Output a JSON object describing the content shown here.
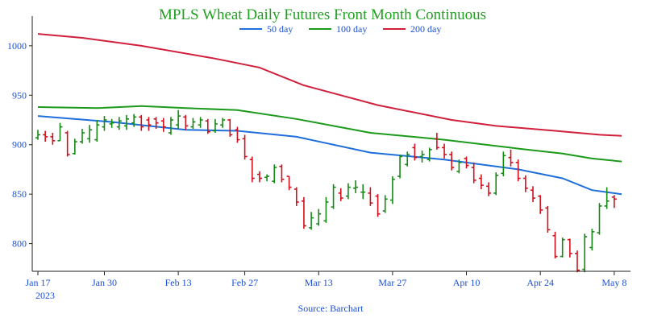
{
  "chart_data": {
    "type": "ohlc_line",
    "title": "MPLS Wheat Daily Futures Front Month Continuous",
    "source": "Source: Barchart",
    "xlabel": "",
    "ylabel": "",
    "ylim": [
      772,
      1030
    ],
    "xlim": [
      0,
      79
    ],
    "y_ticks": [
      800,
      850,
      900,
      950,
      1000
    ],
    "x_ticks": [
      {
        "i": 0,
        "label": "Jan 17"
      },
      {
        "i": 9,
        "label": "Jan 30"
      },
      {
        "i": 19,
        "label": "Feb 13"
      },
      {
        "i": 28,
        "label": "Feb 27"
      },
      {
        "i": 38,
        "label": "Mar 13"
      },
      {
        "i": 48,
        "label": "Mar 27"
      },
      {
        "i": 58,
        "label": "Apr 10"
      },
      {
        "i": 68,
        "label": "Apr 24"
      },
      {
        "i": 78,
        "label": "May 8"
      }
    ],
    "x_sublabel": "2023",
    "legend": [
      {
        "name": "50 day",
        "color": "#1f6fdb"
      },
      {
        "name": "100 day",
        "color": "#1b9a1b"
      },
      {
        "name": "200 day",
        "color": "#d0203c"
      }
    ],
    "up_color": "#168a16",
    "down_color": "#d0101c",
    "ma_series": [
      {
        "name": "50 day",
        "color": "#1f6fdb",
        "points": [
          [
            0,
            929
          ],
          [
            10,
            923
          ],
          [
            20,
            915
          ],
          [
            27,
            914
          ],
          [
            35,
            908
          ],
          [
            45,
            892
          ],
          [
            55,
            885
          ],
          [
            65,
            875
          ],
          [
            71,
            866
          ],
          [
            75,
            854
          ],
          [
            79,
            850
          ]
        ]
      },
      {
        "name": "100 day",
        "color": "#1b9a1b",
        "points": [
          [
            0,
            938
          ],
          [
            8,
            937
          ],
          [
            14,
            939
          ],
          [
            20,
            937
          ],
          [
            27,
            935
          ],
          [
            35,
            926
          ],
          [
            45,
            912
          ],
          [
            55,
            905
          ],
          [
            65,
            896
          ],
          [
            71,
            891
          ],
          [
            75,
            886
          ],
          [
            79,
            883
          ]
        ]
      },
      {
        "name": "200 day",
        "color": "#d0203c",
        "points": [
          [
            0,
            1012
          ],
          [
            6,
            1008
          ],
          [
            14,
            1000
          ],
          [
            24,
            987
          ],
          [
            30,
            978
          ],
          [
            36,
            960
          ],
          [
            46,
            940
          ],
          [
            56,
            925
          ],
          [
            62,
            919
          ],
          [
            70,
            914
          ],
          [
            76,
            910
          ],
          [
            79,
            909
          ]
        ]
      }
    ],
    "bars": [
      [
        0,
        907,
        915,
        905,
        910
      ],
      [
        1,
        910,
        914,
        903,
        908
      ],
      [
        2,
        908,
        912,
        900,
        904
      ],
      [
        3,
        904,
        922,
        904,
        918
      ],
      [
        4,
        912,
        914,
        888,
        890
      ],
      [
        5,
        891,
        906,
        890,
        903
      ],
      [
        6,
        903,
        916,
        901,
        912
      ],
      [
        7,
        906,
        920,
        902,
        915
      ],
      [
        8,
        905,
        925,
        903,
        920
      ],
      [
        9,
        918,
        929,
        914,
        925
      ],
      [
        10,
        921,
        926,
        917,
        922
      ],
      [
        11,
        918,
        928,
        915,
        924
      ],
      [
        12,
        919,
        930,
        915,
        926
      ],
      [
        13,
        922,
        931,
        918,
        928
      ],
      [
        14,
        928,
        930,
        914,
        918
      ],
      [
        15,
        925,
        928,
        914,
        920
      ],
      [
        16,
        926,
        928,
        916,
        922
      ],
      [
        17,
        924,
        927,
        913,
        918
      ],
      [
        18,
        912,
        928,
        910,
        925
      ],
      [
        19,
        920,
        935,
        916,
        929
      ],
      [
        20,
        928,
        930,
        915,
        919
      ],
      [
        21,
        918,
        927,
        916,
        923
      ],
      [
        22,
        920,
        928,
        917,
        925
      ],
      [
        23,
        924,
        926,
        911,
        913
      ],
      [
        24,
        914,
        926,
        912,
        921
      ],
      [
        25,
        920,
        927,
        917,
        925
      ],
      [
        26,
        925,
        926,
        908,
        910
      ],
      [
        27,
        915,
        918,
        902,
        905
      ],
      [
        28,
        906,
        910,
        885,
        888
      ],
      [
        29,
        885,
        888,
        862,
        866
      ],
      [
        30,
        870,
        873,
        862,
        866
      ],
      [
        31,
        867,
        870,
        863,
        868
      ],
      [
        32,
        863,
        880,
        861,
        877
      ],
      [
        33,
        878,
        880,
        862,
        865
      ],
      [
        34,
        868,
        868,
        854,
        857
      ],
      [
        35,
        855,
        857,
        838,
        842
      ],
      [
        36,
        843,
        847,
        815,
        818
      ],
      [
        37,
        816,
        832,
        814,
        826
      ],
      [
        38,
        820,
        835,
        818,
        830
      ],
      [
        39,
        823,
        847,
        821,
        842
      ],
      [
        40,
        837,
        860,
        835,
        857
      ],
      [
        41,
        851,
        856,
        843,
        846
      ],
      [
        42,
        848,
        861,
        845,
        857
      ],
      [
        43,
        856,
        864,
        851,
        857
      ],
      [
        44,
        852,
        860,
        845,
        852
      ],
      [
        45,
        851,
        857,
        838,
        841
      ],
      [
        46,
        848,
        850,
        827,
        830
      ],
      [
        47,
        833,
        849,
        831,
        845
      ],
      [
        48,
        844,
        868,
        840,
        865
      ],
      [
        49,
        868,
        890,
        866,
        888
      ],
      [
        50,
        880,
        893,
        878,
        890
      ],
      [
        51,
        897,
        901,
        884,
        887
      ],
      [
        52,
        888,
        894,
        882,
        890
      ],
      [
        53,
        885,
        897,
        883,
        895
      ],
      [
        54,
        906,
        912,
        895,
        897
      ],
      [
        55,
        897,
        901,
        886,
        890
      ],
      [
        56,
        890,
        893,
        874,
        877
      ],
      [
        57,
        873,
        885,
        871,
        882
      ],
      [
        58,
        886,
        888,
        876,
        879
      ],
      [
        59,
        877,
        882,
        861,
        864
      ],
      [
        60,
        866,
        870,
        855,
        859
      ],
      [
        61,
        858,
        862,
        848,
        851
      ],
      [
        62,
        851,
        872,
        849,
        869
      ],
      [
        63,
        871,
        893,
        868,
        889
      ],
      [
        64,
        887,
        895,
        878,
        882
      ],
      [
        65,
        882,
        885,
        863,
        866
      ],
      [
        66,
        866,
        869,
        852,
        856
      ],
      [
        67,
        854,
        858,
        842,
        846
      ],
      [
        68,
        848,
        849,
        830,
        834
      ],
      [
        69,
        836,
        838,
        811,
        814
      ],
      [
        70,
        808,
        812,
        785,
        787
      ],
      [
        71,
        787,
        806,
        786,
        804
      ],
      [
        72,
        804,
        805,
        786,
        790
      ],
      [
        73,
        790,
        793,
        771,
        773
      ],
      [
        74,
        774,
        810,
        771,
        807
      ],
      [
        75,
        796,
        815,
        793,
        812
      ],
      [
        76,
        811,
        841,
        809,
        838
      ],
      [
        77,
        838,
        857,
        835,
        843
      ],
      [
        78,
        847,
        849,
        836,
        845
      ]
    ]
  }
}
